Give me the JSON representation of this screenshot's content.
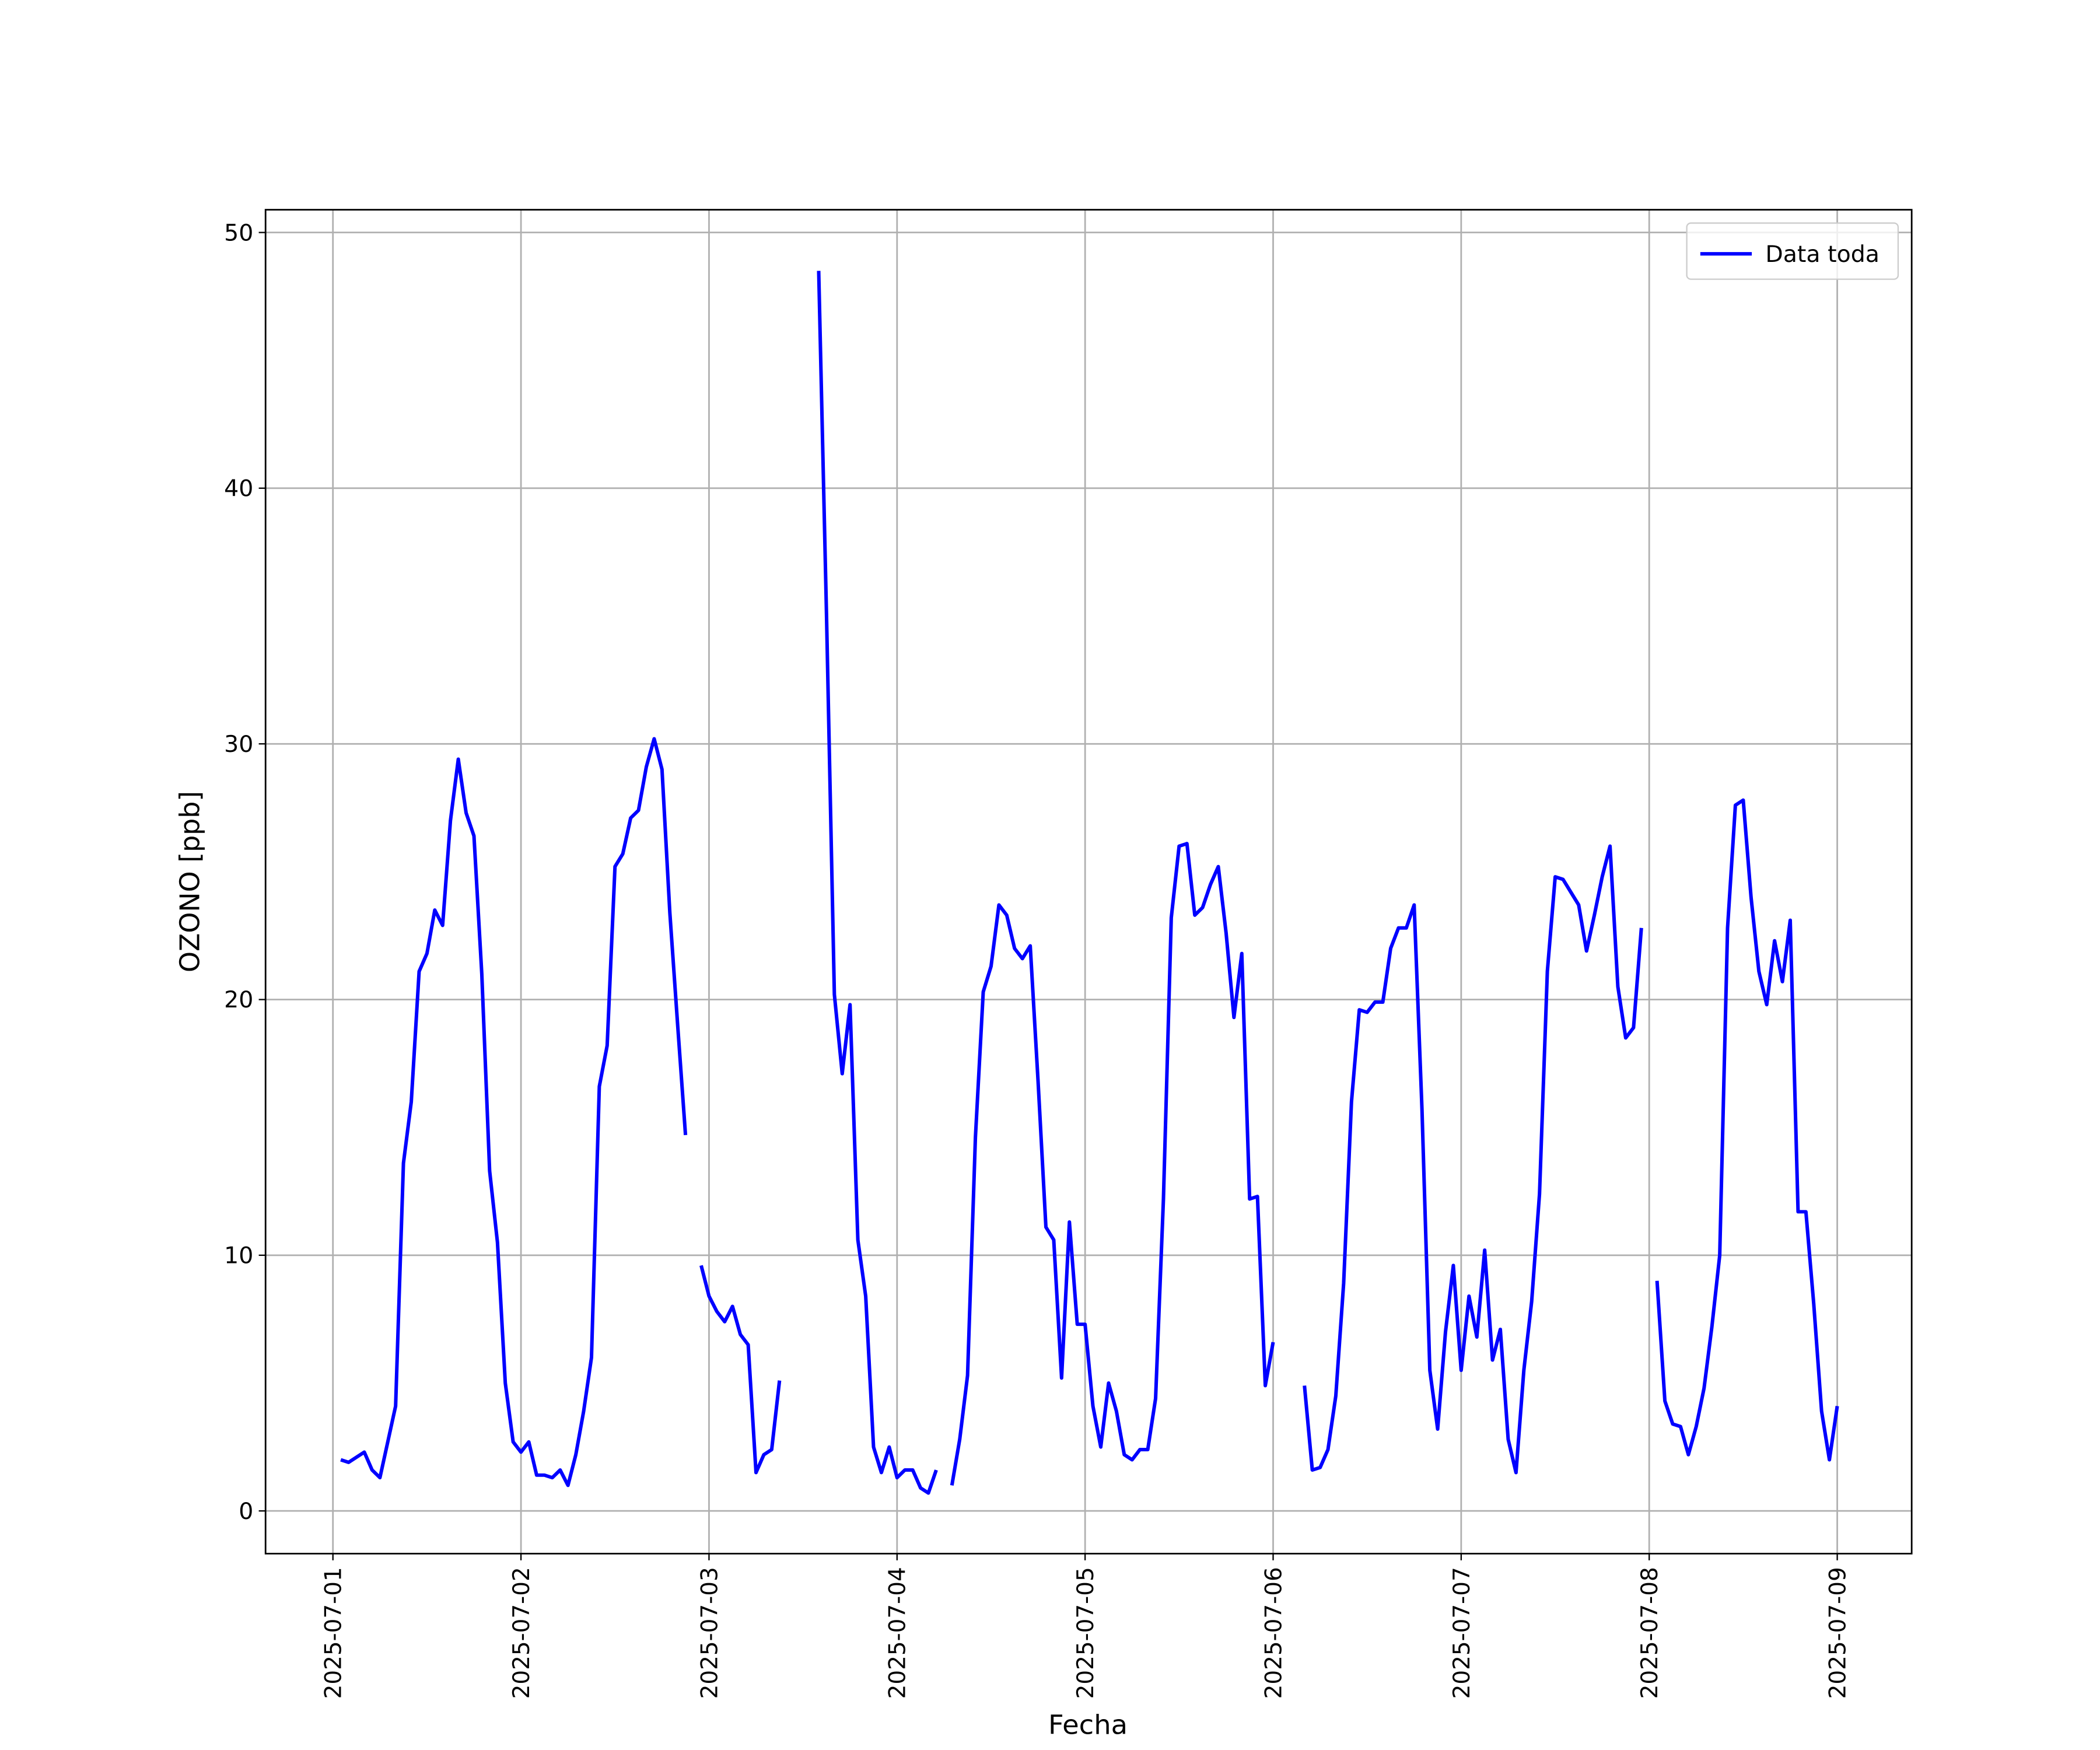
{
  "chart_data": {
    "type": "line",
    "xlabel": "Fecha",
    "ylabel": "OZONO [ppb]",
    "x": [
      1,
      2,
      3,
      4,
      5,
      6,
      7,
      8,
      9,
      10,
      11,
      12,
      13,
      14,
      15,
      16,
      17,
      18,
      19,
      20,
      21,
      22,
      23,
      24,
      25,
      26,
      27,
      28,
      29,
      30,
      31,
      32,
      33,
      34,
      35,
      36,
      37,
      38,
      39,
      40,
      41,
      42,
      43,
      44,
      45,
      46,
      47,
      48,
      49,
      50,
      51,
      52,
      53,
      54,
      55,
      56,
      57,
      58,
      59,
      60,
      61,
      62,
      63,
      64,
      65,
      66,
      67,
      68,
      69,
      70,
      71,
      72,
      73,
      74,
      75,
      76,
      77,
      78,
      79,
      80,
      81,
      82,
      83,
      84,
      85,
      86,
      87,
      88,
      89,
      90,
      91,
      92,
      93,
      94,
      95,
      96,
      97,
      98,
      99,
      100,
      101,
      102,
      103,
      104,
      105,
      106,
      107,
      108,
      109,
      110,
      111,
      112,
      113,
      114,
      115,
      116,
      117,
      118,
      119,
      120,
      121,
      122,
      123,
      124,
      125,
      126,
      127,
      128,
      129,
      130,
      131,
      132,
      133,
      134,
      135,
      136,
      137,
      138,
      139,
      140,
      141,
      142,
      143,
      144,
      145,
      146,
      147,
      148,
      149,
      150,
      151,
      152,
      153,
      154,
      155,
      156,
      157,
      158,
      159,
      160,
      161,
      162,
      163,
      164,
      165,
      166,
      167,
      168,
      169,
      170,
      171,
      172,
      173,
      174,
      175,
      176,
      177,
      178,
      179,
      180,
      181,
      182,
      183,
      184,
      185,
      186,
      187,
      188,
      189,
      190,
      191,
      192
    ],
    "series": [
      {
        "name": "Data toda",
        "color": "#0000ff",
        "values": [
          2.0,
          1.9,
          2.1,
          2.3,
          1.6,
          1.3,
          2.7,
          4.1,
          13.6,
          16.0,
          21.1,
          21.8,
          23.5,
          22.9,
          27.0,
          29.4,
          27.3,
          26.4,
          21.0,
          13.3,
          10.5,
          5.0,
          2.7,
          2.3,
          2.7,
          1.4,
          1.4,
          1.3,
          1.6,
          1.0,
          2.2,
          3.9,
          6.0,
          16.6,
          18.2,
          25.2,
          25.7,
          27.1,
          27.4,
          29.1,
          30.2,
          29.0,
          23.4,
          19.0,
          14.7,
          null,
          9.6,
          8.4,
          7.8,
          7.4,
          8.0,
          6.9,
          6.5,
          1.5,
          2.2,
          2.4,
          5.1,
          null,
          null,
          null,
          null,
          48.5,
          35.0,
          20.2,
          17.1,
          19.8,
          10.6,
          8.4,
          2.5,
          1.5,
          2.5,
          1.3,
          1.6,
          1.6,
          0.9,
          0.7,
          1.6,
          null,
          1.0,
          2.8,
          5.3,
          14.6,
          20.3,
          21.3,
          23.7,
          23.3,
          22.0,
          21.6,
          22.1,
          16.8,
          11.1,
          10.6,
          5.2,
          11.3,
          7.3,
          7.3,
          4.1,
          2.5,
          5.0,
          3.9,
          2.2,
          2.0,
          2.4,
          2.4,
          4.4,
          12.2,
          23.2,
          26.0,
          26.1,
          23.3,
          23.6,
          24.5,
          25.2,
          22.6,
          19.3,
          21.8,
          12.2,
          12.3,
          4.9,
          6.6,
          null,
          null,
          null,
          4.9,
          1.6,
          1.7,
          2.4,
          4.5,
          8.9,
          16.0,
          19.6,
          19.5,
          19.9,
          19.9,
          22.0,
          22.8,
          22.8,
          23.7,
          15.7,
          5.5,
          3.2,
          7.0,
          9.6,
          5.5,
          8.4,
          6.8,
          10.2,
          5.9,
          7.1,
          2.8,
          1.5,
          5.5,
          8.2,
          12.4,
          21.1,
          24.8,
          24.7,
          24.2,
          23.7,
          21.9,
          23.3,
          24.8,
          26.0,
          20.5,
          18.5,
          18.9,
          22.8,
          null,
          9.0,
          4.3,
          3.4,
          3.3,
          2.2,
          3.3,
          4.8,
          7.2,
          10.0,
          22.8,
          27.6,
          27.8,
          24.0,
          21.1,
          19.8,
          22.3,
          20.7,
          23.1,
          11.7,
          11.7,
          8.1,
          3.9,
          2.0,
          4.1
        ]
      }
    ],
    "xlim": [
      -8.6,
      201.5
    ],
    "xticks": [
      {
        "value": 0,
        "label": "2025-07-01"
      },
      {
        "value": 24,
        "label": "2025-07-02"
      },
      {
        "value": 48,
        "label": "2025-07-03"
      },
      {
        "value": 72,
        "label": "2025-07-04"
      },
      {
        "value": 96,
        "label": "2025-07-05"
      },
      {
        "value": 120,
        "label": "2025-07-06"
      },
      {
        "value": 144,
        "label": "2025-07-07"
      },
      {
        "value": 168,
        "label": "2025-07-08"
      },
      {
        "value": 192,
        "label": "2025-07-09"
      }
    ],
    "ylim": [
      -1.67,
      50.89
    ],
    "yticks": [
      0,
      10,
      20,
      30,
      40,
      50
    ],
    "grid": true,
    "legend": "upper right"
  }
}
